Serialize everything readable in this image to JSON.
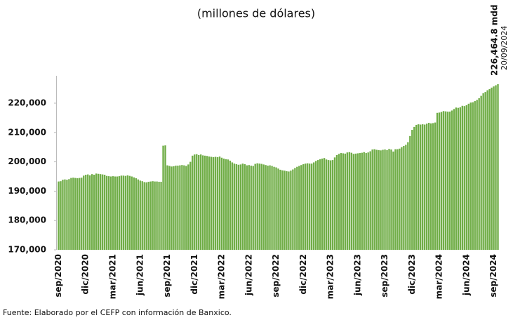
{
  "chart_data": {
    "type": "bar",
    "title": "(millones de dólares)",
    "annotation": "226,464.8 mdd",
    "annotation_date": "20/09/2024",
    "source": "Fuente: Elaborado por el CEFP con información de Banxico.",
    "color": "#70ad47",
    "grid": false,
    "ylim": [
      170000,
      229500
    ],
    "yticks": [
      {
        "value": 170000,
        "label": "170,000"
      },
      {
        "value": 180000,
        "label": "180,000"
      },
      {
        "value": 190000,
        "label": "190,000"
      },
      {
        "value": 200000,
        "label": "200,000"
      },
      {
        "value": 210000,
        "label": "210,000"
      },
      {
        "value": 220000,
        "label": "220,000"
      }
    ],
    "categories": [
      "sep/2020",
      null,
      null,
      null,
      null,
      null,
      null,
      null,
      null,
      null,
      null,
      null,
      null,
      "dic/2020",
      null,
      null,
      null,
      null,
      null,
      null,
      null,
      null,
      null,
      null,
      null,
      null,
      "mar/2021",
      null,
      null,
      null,
      null,
      null,
      null,
      null,
      null,
      null,
      null,
      null,
      null,
      "jun/2021",
      null,
      null,
      null,
      null,
      null,
      null,
      null,
      null,
      null,
      null,
      null,
      null,
      "sep/2021",
      null,
      null,
      null,
      null,
      null,
      null,
      null,
      null,
      null,
      null,
      null,
      null,
      "dic/2021",
      null,
      null,
      null,
      null,
      null,
      null,
      null,
      null,
      null,
      null,
      null,
      null,
      "mar/2022",
      null,
      null,
      null,
      null,
      null,
      null,
      null,
      null,
      null,
      null,
      null,
      null,
      "jun/2022",
      null,
      null,
      null,
      null,
      null,
      null,
      null,
      null,
      null,
      null,
      null,
      null,
      "sep/2022",
      null,
      null,
      null,
      null,
      null,
      null,
      null,
      null,
      null,
      null,
      null,
      null,
      "dic/2022",
      null,
      null,
      null,
      null,
      null,
      null,
      null,
      null,
      null,
      null,
      null,
      null,
      "mar/2023",
      null,
      null,
      null,
      null,
      null,
      null,
      null,
      null,
      null,
      null,
      null,
      null,
      "jun/2023",
      null,
      null,
      null,
      null,
      null,
      null,
      null,
      null,
      null,
      null,
      null,
      null,
      "sep/2023",
      null,
      null,
      null,
      null,
      null,
      null,
      null,
      null,
      null,
      null,
      null,
      null,
      "dic/2023",
      null,
      null,
      null,
      null,
      null,
      null,
      null,
      null,
      null,
      null,
      null,
      null,
      "mar/2024",
      null,
      null,
      null,
      null,
      null,
      null,
      null,
      null,
      null,
      null,
      null,
      null,
      "jun/2024",
      null,
      null,
      null,
      null,
      null,
      null,
      null,
      null,
      null,
      null,
      null,
      null,
      "sep/2024",
      null,
      null
    ],
    "values": [
      193300,
      193400,
      193900,
      194000,
      193900,
      194100,
      194500,
      194600,
      194500,
      194400,
      194500,
      194600,
      195300,
      195600,
      195700,
      195400,
      195800,
      195600,
      196000,
      195900,
      195800,
      195700,
      195600,
      195200,
      195100,
      195000,
      195100,
      195000,
      195000,
      195100,
      195300,
      195300,
      195200,
      195400,
      195200,
      195000,
      194700,
      194400,
      194000,
      193600,
      193400,
      193100,
      193000,
      193200,
      193300,
      193400,
      193300,
      193300,
      193200,
      193200,
      205500,
      205600,
      198800,
      198600,
      198400,
      198500,
      198700,
      198700,
      198800,
      198900,
      198800,
      198600,
      199100,
      200000,
      202100,
      202500,
      202600,
      202300,
      202500,
      202200,
      202100,
      202000,
      201800,
      201700,
      201600,
      201700,
      201600,
      201800,
      201400,
      201100,
      200900,
      200800,
      200400,
      199800,
      199400,
      199200,
      199000,
      199100,
      199400,
      199200,
      198800,
      198900,
      198700,
      198600,
      199300,
      199500,
      199400,
      199300,
      199100,
      198900,
      198700,
      198800,
      198600,
      198300,
      198100,
      197700,
      197300,
      197100,
      197000,
      196800,
      196700,
      197000,
      197400,
      197900,
      198300,
      198600,
      198900,
      199200,
      199400,
      199500,
      199400,
      199400,
      199800,
      200300,
      200600,
      200900,
      201100,
      201300,
      200800,
      200600,
      200500,
      200600,
      201500,
      202300,
      202700,
      203000,
      202900,
      202800,
      203200,
      203300,
      203100,
      202700,
      202800,
      202900,
      203000,
      203100,
      203300,
      203000,
      203200,
      203600,
      204200,
      204300,
      204100,
      204000,
      203900,
      204100,
      204200,
      204000,
      204400,
      204200,
      203500,
      204300,
      204300,
      204500,
      205000,
      205400,
      205800,
      206700,
      208800,
      210900,
      211900,
      212600,
      212800,
      212700,
      212800,
      212700,
      213000,
      213300,
      213100,
      213200,
      213400,
      216700,
      216800,
      217000,
      217300,
      217200,
      217100,
      217100,
      217500,
      218000,
      218500,
      218400,
      218600,
      219100,
      219000,
      219300,
      219800,
      220200,
      220300,
      220700,
      221100,
      221700,
      222500,
      223400,
      223800,
      224400,
      224800,
      225300,
      225700,
      226100,
      226464.8
    ]
  }
}
